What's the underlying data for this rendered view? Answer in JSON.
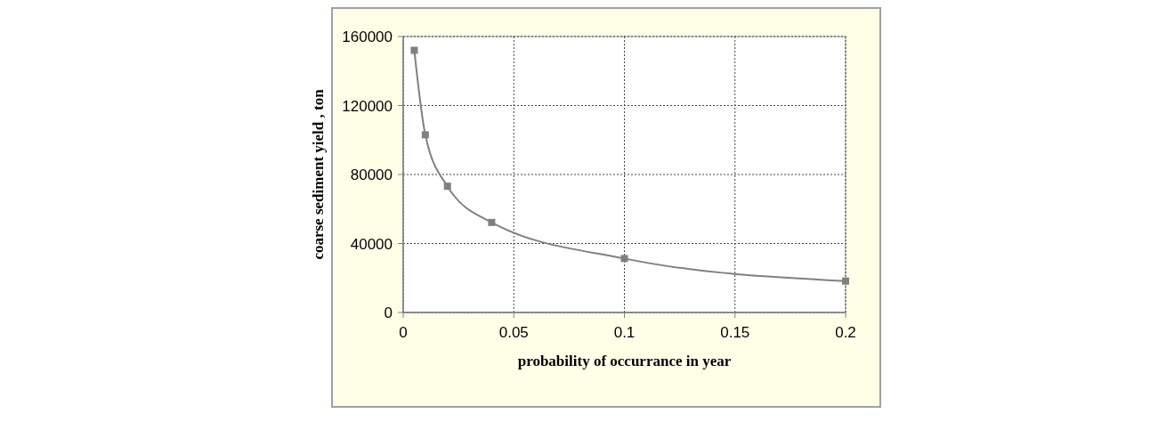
{
  "chart_data": {
    "type": "line",
    "xlabel": "probability of occurrance in year",
    "ylabel": "coarse sediment yield , ton",
    "x": [
      0.005,
      0.01,
      0.02,
      0.04,
      0.1,
      0.2
    ],
    "series": [
      {
        "color": "#808080",
        "values": [
          152000,
          103000,
          73200,
          52200,
          31300,
          18200
        ]
      }
    ],
    "xlim": [
      0,
      0.2
    ],
    "xticks": [
      0,
      0.05,
      0.1,
      0.15,
      0.2
    ],
    "ylim": [
      0,
      160000
    ],
    "yticks": [
      0,
      40000,
      80000,
      120000,
      160000
    ],
    "grid": true,
    "marker": "square",
    "line_style": "solid"
  }
}
